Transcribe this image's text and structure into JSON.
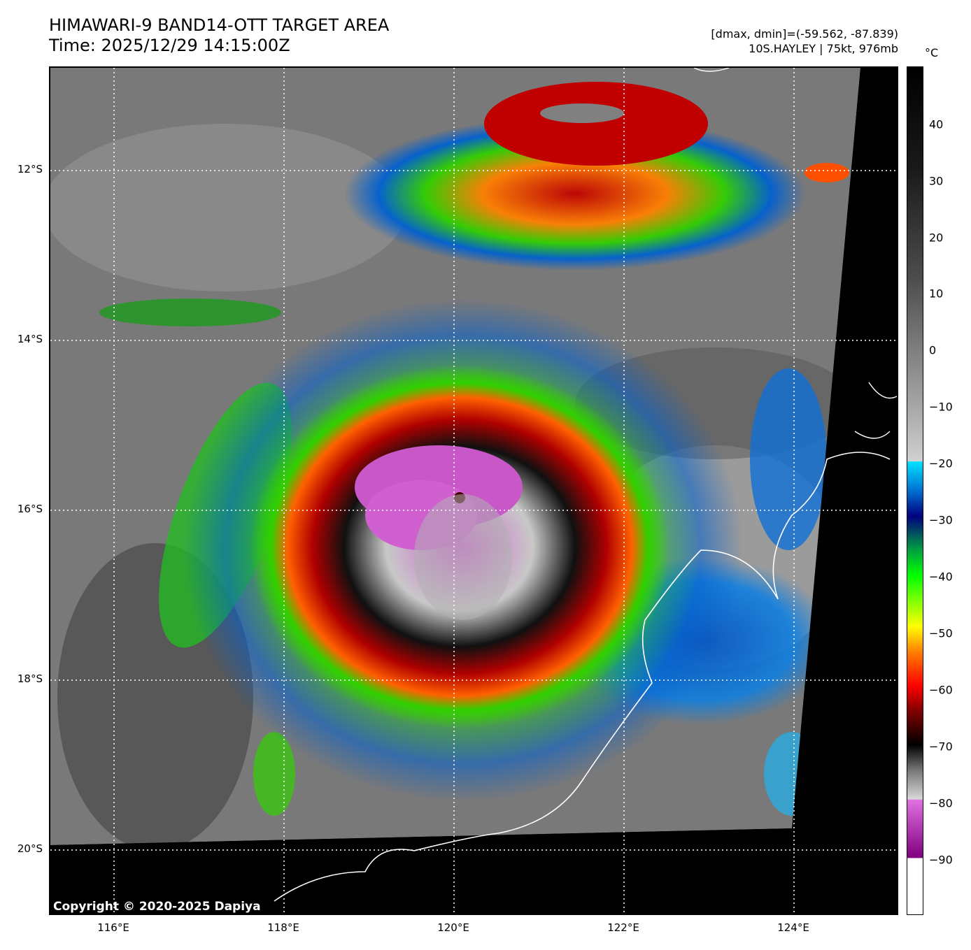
{
  "header": {
    "title_line1": "HIMAWARI-9 BAND14-OTT TARGET AREA",
    "title_line2": "Time: 2025/12/29 14:15:00Z",
    "info_line1": "[dmax, dmin]=(-59.562, -87.839)",
    "info_line2": "10S.HAYLEY | 75kt, 976mb"
  },
  "map": {
    "lat_labels": [
      "12°S",
      "14°S",
      "16°S",
      "18°S",
      "20°S"
    ],
    "lon_labels": [
      "116°E",
      "118°E",
      "120°E",
      "122°E",
      "124°E"
    ],
    "copyright": "Copyright © 2020-2025 Dapiya"
  },
  "colorbar": {
    "unit": "°C",
    "ticks": [
      "40",
      "30",
      "20",
      "10",
      "0",
      "−10",
      "−20",
      "−30",
      "−40",
      "−50",
      "−60",
      "−70",
      "−80",
      "−90"
    ]
  }
}
